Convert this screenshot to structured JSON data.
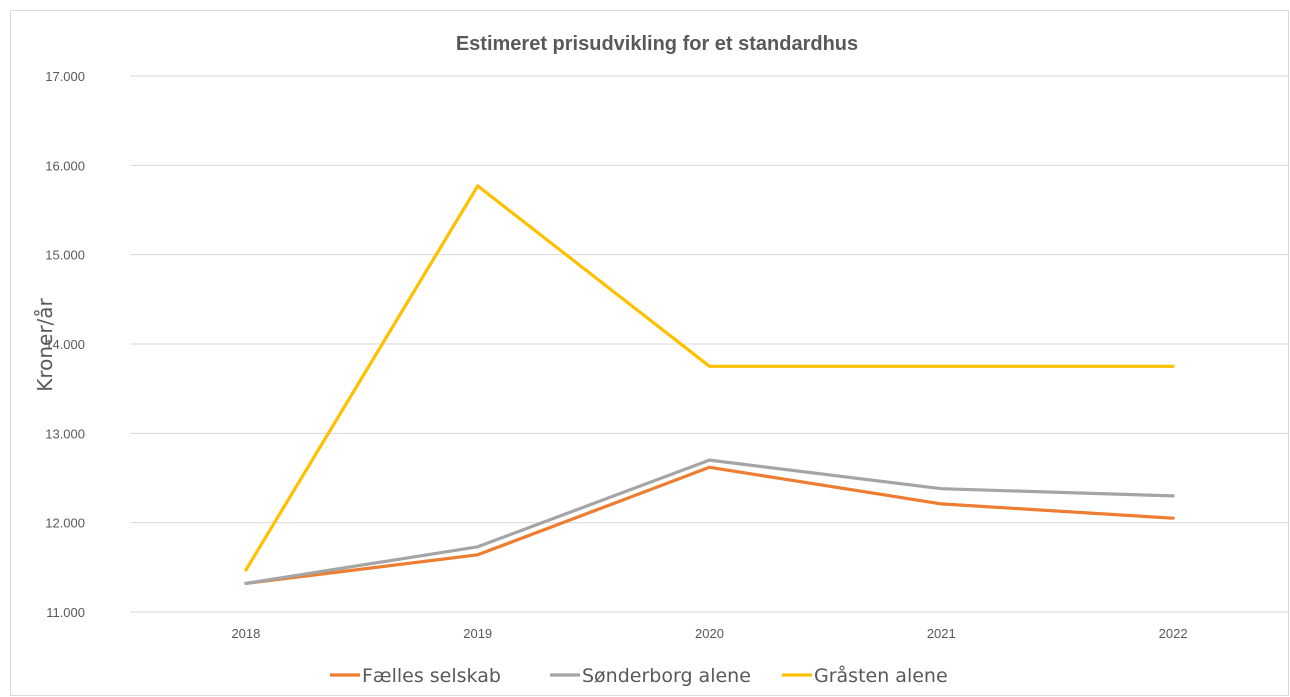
{
  "chart_data": {
    "type": "line",
    "title": "Estimeret prisudvikling for et standardhus",
    "xlabel": "",
    "ylabel": "Kroner/år",
    "categories": [
      "2018",
      "2019",
      "2020",
      "2021",
      "2022"
    ],
    "ylim": [
      11000,
      17000
    ],
    "yticks": [
      11000,
      12000,
      13000,
      14000,
      15000,
      16000,
      17000
    ],
    "ytick_labels": [
      "11.000",
      "12.000",
      "13.000",
      "14.000",
      "15.000",
      "16.000",
      "17.000"
    ],
    "grid": true,
    "legend_position": "bottom",
    "series": [
      {
        "name": "Fælles selskab",
        "color": "#ED7D31",
        "values": [
          11320,
          11640,
          12620,
          12210,
          12050
        ]
      },
      {
        "name": "Sønderborg alene",
        "color": "#A5A5A5",
        "values": [
          11320,
          11730,
          12700,
          12380,
          12300
        ]
      },
      {
        "name": "Gråsten alene",
        "color": "#FFC000",
        "values": [
          11470,
          15770,
          13750,
          13750,
          13750
        ]
      }
    ]
  }
}
